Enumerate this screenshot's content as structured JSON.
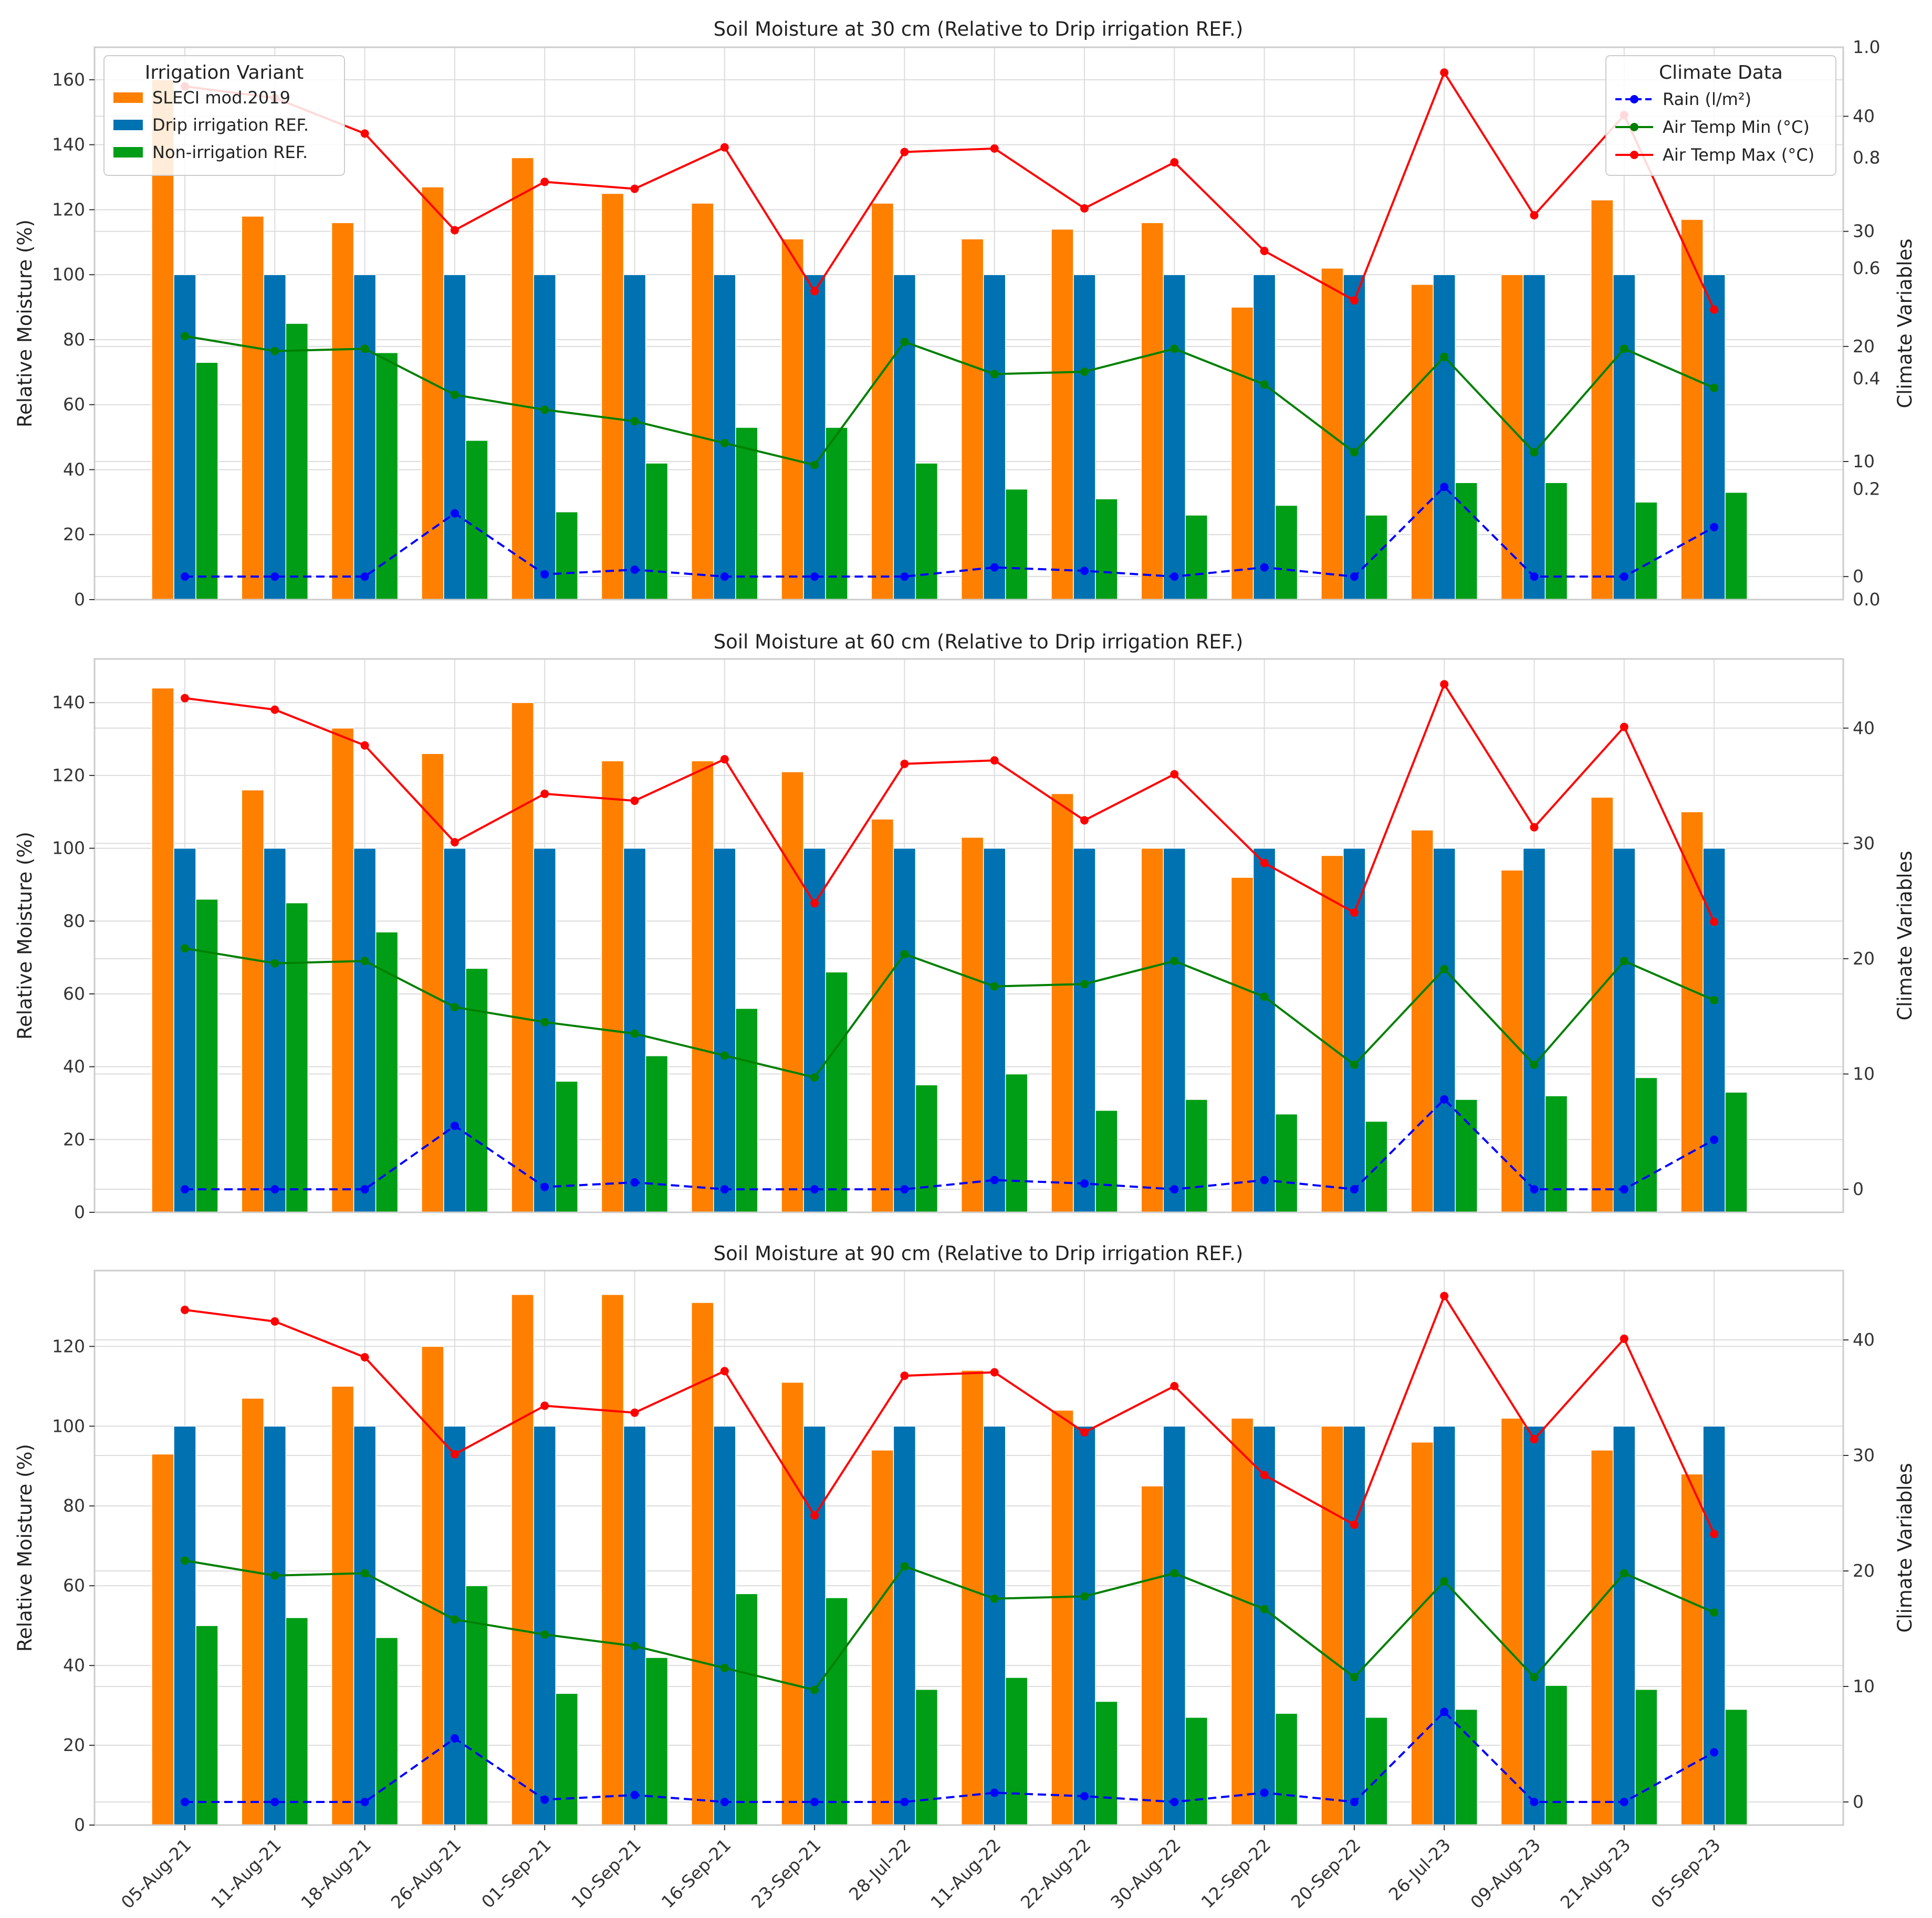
{
  "colors": {
    "sleci": "#ff7f00",
    "drip": "#0072b2",
    "nonirr": "#009e16",
    "rain": "#0000ff",
    "tmin": "#008000",
    "tmax": "#ff0000"
  },
  "legends": {
    "irrigation": {
      "title": "Irrigation Variant",
      "items": [
        "SLECI mod.2019",
        "Drip irrigation REF.",
        "Non-irrigation REF."
      ]
    },
    "climate": {
      "title": "Climate Data",
      "items": [
        "Rain (l/m²)",
        "Air Temp Min (°C)",
        "Air Temp Max (°C)"
      ]
    }
  },
  "chart_data": [
    {
      "type": "bar+line",
      "title": "Soil Moisture at 30 cm (Relative to Drip irrigation REF.)",
      "ylabel": "Relative Moisture (%)",
      "y2label": "Climate Variables",
      "ylim": [
        0,
        170
      ],
      "yticks": [
        0,
        20,
        40,
        60,
        80,
        100,
        120,
        140,
        160
      ],
      "y2lim": [
        -2,
        46
      ],
      "y2ticks": [
        0,
        10,
        20,
        30,
        40
      ],
      "y3lim": [
        0.0,
        1.0
      ],
      "y3ticks": [
        "0.0",
        "0.2",
        "0.4",
        "0.6",
        "0.8",
        "1.0"
      ],
      "categories": [
        "05-Aug-21",
        "11-Aug-21",
        "18-Aug-21",
        "26-Aug-21",
        "01-Sep-21",
        "10-Sep-21",
        "16-Sep-21",
        "23-Sep-21",
        "28-Jul-22",
        "11-Aug-22",
        "22-Aug-22",
        "30-Aug-22",
        "12-Sep-22",
        "20-Sep-22",
        "26-Jul-23",
        "09-Aug-23",
        "21-Aug-23",
        "05-Sep-23"
      ],
      "series": [
        {
          "name": "SLECI mod.2019",
          "kind": "bar",
          "values": [
            160,
            118,
            116,
            127,
            136,
            125,
            122,
            111,
            122,
            111,
            114,
            116,
            90,
            102,
            97,
            100,
            123,
            117
          ]
        },
        {
          "name": "Drip irrigation REF.",
          "kind": "bar",
          "values": [
            100,
            100,
            100,
            100,
            100,
            100,
            100,
            100,
            100,
            100,
            100,
            100,
            100,
            100,
            100,
            100,
            100,
            100
          ]
        },
        {
          "name": "Non-irrigation REF.",
          "kind": "bar",
          "values": [
            73,
            85,
            76,
            49,
            27,
            42,
            53,
            53,
            42,
            34,
            31,
            26,
            29,
            26,
            36,
            36,
            30,
            33
          ]
        },
        {
          "name": "Rain (l/m²)",
          "kind": "line",
          "axis": "y2",
          "values": [
            0,
            0,
            0,
            5.5,
            0.2,
            0.6,
            0,
            0,
            0,
            0.8,
            0.5,
            0,
            0.8,
            0,
            7.8,
            0,
            0,
            4.3
          ]
        },
        {
          "name": "Air Temp Min (°C)",
          "kind": "line",
          "axis": "y2",
          "values": [
            20.9,
            19.6,
            19.8,
            15.8,
            14.5,
            13.5,
            11.6,
            9.7,
            20.4,
            17.6,
            17.8,
            19.8,
            16.7,
            10.8,
            19.1,
            10.8,
            19.8,
            16.4
          ]
        },
        {
          "name": "Air Temp Max (°C)",
          "kind": "line",
          "axis": "y2",
          "values": [
            42.6,
            41.6,
            38.5,
            30.1,
            34.3,
            33.7,
            37.3,
            24.8,
            36.9,
            37.2,
            32.0,
            36.0,
            28.3,
            24.0,
            43.8,
            31.4,
            40.1,
            23.2
          ]
        }
      ]
    },
    {
      "type": "bar+line",
      "title": "Soil Moisture at 60 cm (Relative to Drip irrigation REF.)",
      "ylabel": "Relative Moisture (%)",
      "y2label": "Climate Variables",
      "ylim": [
        0,
        152
      ],
      "yticks": [
        0,
        20,
        40,
        60,
        80,
        100,
        120,
        140
      ],
      "y2lim": [
        -2,
        46
      ],
      "y2ticks": [
        0,
        10,
        20,
        30,
        40
      ],
      "categories": [
        "05-Aug-21",
        "11-Aug-21",
        "18-Aug-21",
        "26-Aug-21",
        "01-Sep-21",
        "10-Sep-21",
        "16-Sep-21",
        "23-Sep-21",
        "28-Jul-22",
        "11-Aug-22",
        "22-Aug-22",
        "30-Aug-22",
        "12-Sep-22",
        "20-Sep-22",
        "26-Jul-23",
        "09-Aug-23",
        "21-Aug-23",
        "05-Sep-23"
      ],
      "series": [
        {
          "name": "SLECI mod.2019",
          "kind": "bar",
          "values": [
            144,
            116,
            133,
            126,
            140,
            124,
            124,
            121,
            108,
            103,
            115,
            100,
            92,
            98,
            105,
            94,
            114,
            110
          ]
        },
        {
          "name": "Drip irrigation REF.",
          "kind": "bar",
          "values": [
            100,
            100,
            100,
            100,
            100,
            100,
            100,
            100,
            100,
            100,
            100,
            100,
            100,
            100,
            100,
            100,
            100,
            100
          ]
        },
        {
          "name": "Non-irrigation REF.",
          "kind": "bar",
          "values": [
            86,
            85,
            77,
            67,
            36,
            43,
            56,
            66,
            35,
            38,
            28,
            31,
            27,
            25,
            31,
            32,
            37,
            33
          ]
        },
        {
          "name": "Rain (l/m²)",
          "kind": "line",
          "axis": "y2",
          "values": [
            0,
            0,
            0,
            5.5,
            0.2,
            0.6,
            0,
            0,
            0,
            0.8,
            0.5,
            0,
            0.8,
            0,
            7.8,
            0,
            0,
            4.3
          ]
        },
        {
          "name": "Air Temp Min (°C)",
          "kind": "line",
          "axis": "y2",
          "values": [
            20.9,
            19.6,
            19.8,
            15.8,
            14.5,
            13.5,
            11.6,
            9.7,
            20.4,
            17.6,
            17.8,
            19.8,
            16.7,
            10.8,
            19.1,
            10.8,
            19.8,
            16.4
          ]
        },
        {
          "name": "Air Temp Max (°C)",
          "kind": "line",
          "axis": "y2",
          "values": [
            42.6,
            41.6,
            38.5,
            30.1,
            34.3,
            33.7,
            37.3,
            24.8,
            36.9,
            37.2,
            32.0,
            36.0,
            28.3,
            24.0,
            43.8,
            31.4,
            40.1,
            23.2
          ]
        }
      ]
    },
    {
      "type": "bar+line",
      "title": "Soil Moisture at 90 cm (Relative to Drip irrigation REF.)",
      "ylabel": "Relative Moisture (%)",
      "y2label": "Climate Variables",
      "ylim": [
        0,
        139
      ],
      "yticks": [
        0,
        20,
        40,
        60,
        80,
        100,
        120
      ],
      "y2lim": [
        -2,
        46
      ],
      "y2ticks": [
        0,
        10,
        20,
        30,
        40
      ],
      "categories": [
        "05-Aug-21",
        "11-Aug-21",
        "18-Aug-21",
        "26-Aug-21",
        "01-Sep-21",
        "10-Sep-21",
        "16-Sep-21",
        "23-Sep-21",
        "28-Jul-22",
        "11-Aug-22",
        "22-Aug-22",
        "30-Aug-22",
        "12-Sep-22",
        "20-Sep-22",
        "26-Jul-23",
        "09-Aug-23",
        "21-Aug-23",
        "05-Sep-23"
      ],
      "series": [
        {
          "name": "SLECI mod.2019",
          "kind": "bar",
          "values": [
            93,
            107,
            110,
            120,
            133,
            133,
            131,
            111,
            94,
            114,
            104,
            85,
            102,
            100,
            96,
            102,
            94,
            88
          ]
        },
        {
          "name": "Drip irrigation REF.",
          "kind": "bar",
          "values": [
            100,
            100,
            100,
            100,
            100,
            100,
            100,
            100,
            100,
            100,
            100,
            100,
            100,
            100,
            100,
            100,
            100,
            100
          ]
        },
        {
          "name": "Non-irrigation REF.",
          "kind": "bar",
          "values": [
            50,
            52,
            47,
            60,
            33,
            42,
            58,
            57,
            34,
            37,
            31,
            27,
            28,
            27,
            29,
            35,
            34,
            29
          ]
        },
        {
          "name": "Rain (l/m²)",
          "kind": "line",
          "axis": "y2",
          "values": [
            0,
            0,
            0,
            5.5,
            0.2,
            0.6,
            0,
            0,
            0,
            0.8,
            0.5,
            0,
            0.8,
            0,
            7.8,
            0,
            0,
            4.3
          ]
        },
        {
          "name": "Air Temp Min (°C)",
          "kind": "line",
          "axis": "y2",
          "values": [
            20.9,
            19.6,
            19.8,
            15.8,
            14.5,
            13.5,
            11.6,
            9.7,
            20.4,
            17.6,
            17.8,
            19.8,
            16.7,
            10.8,
            19.1,
            10.8,
            19.8,
            16.4
          ]
        },
        {
          "name": "Air Temp Max (°C)",
          "kind": "line",
          "axis": "y2",
          "values": [
            42.6,
            41.6,
            38.5,
            30.1,
            34.3,
            33.7,
            37.3,
            24.8,
            36.9,
            37.2,
            32.0,
            36.0,
            28.3,
            24.0,
            43.8,
            31.4,
            40.1,
            23.2
          ]
        }
      ]
    }
  ]
}
